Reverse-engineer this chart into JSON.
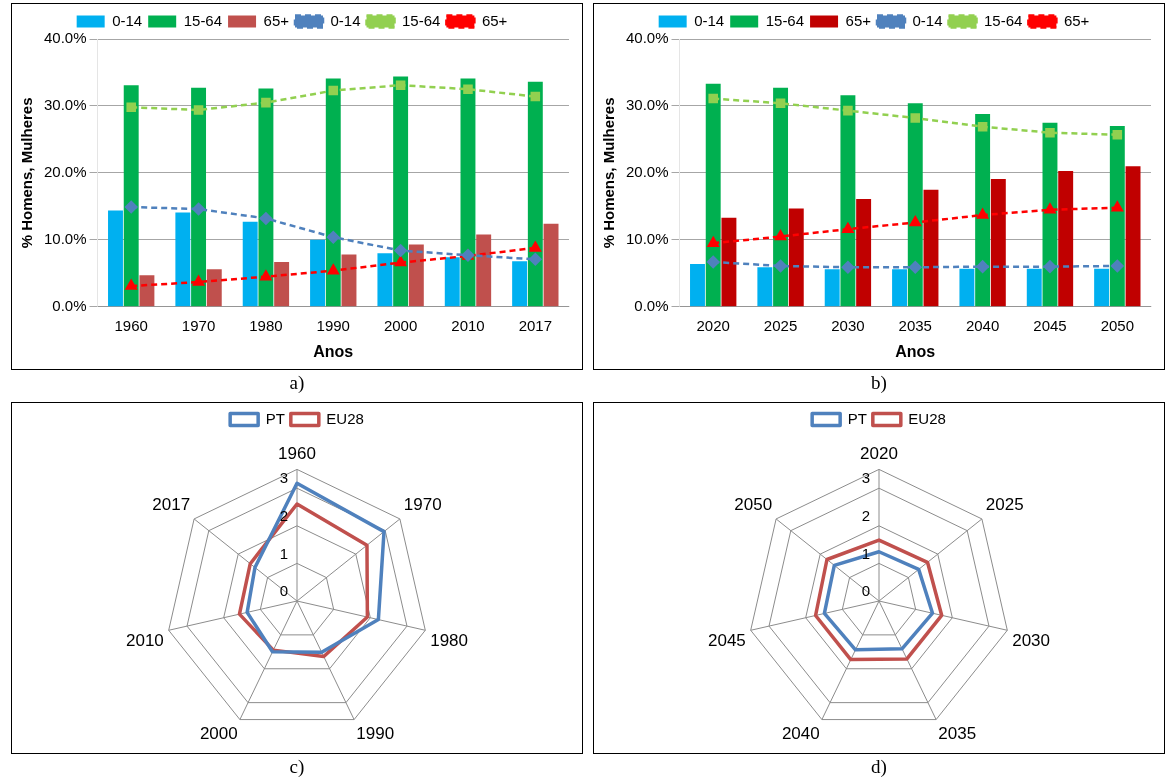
{
  "chart_data": [
    {
      "type": "bar",
      "categories": [
        "1960",
        "1970",
        "1980",
        "1990",
        "2000",
        "2010",
        "2017"
      ],
      "xlabel": "Anos",
      "ylabel": "% Homens, Mulheres",
      "ylim": [
        0,
        40
      ],
      "yticks": [
        {
          "value": 0,
          "label": "0.0%"
        },
        {
          "value": 10,
          "label": "10.0%"
        },
        {
          "value": 20,
          "label": "20.0%"
        },
        {
          "value": 30,
          "label": "30.0%"
        },
        {
          "value": 40,
          "label": "40.0%"
        }
      ],
      "grid": "y",
      "legend": "top",
      "annotations": [
        "a)"
      ],
      "series": [
        {
          "name": "0-14",
          "type": "bar",
          "color": "#00b0f0",
          "values": [
            14.4,
            14.1,
            12.7,
            10.0,
            8.0,
            7.4,
            6.8
          ]
        },
        {
          "name": "15-64",
          "type": "bar",
          "color": "#00b050",
          "values": [
            33.1,
            32.7,
            32.6,
            34.1,
            34.4,
            34.1,
            33.6
          ]
        },
        {
          "name": "65+",
          "type": "bar",
          "color": "#c0504d",
          "values": [
            4.7,
            5.6,
            6.7,
            7.8,
            9.3,
            10.8,
            12.4
          ]
        },
        {
          "name": "0-14",
          "type": "line",
          "color": "#4f81bd",
          "marker": "diamond",
          "line_style": "dashed",
          "values": [
            14.9,
            14.6,
            13.2,
            10.4,
            8.4,
            7.7,
            7.1
          ]
        },
        {
          "name": "15-64",
          "type": "line",
          "color": "#92d050",
          "marker": "square",
          "line_style": "dashed",
          "values": [
            29.8,
            29.4,
            30.5,
            32.3,
            33.1,
            32.5,
            31.4
          ]
        },
        {
          "name": "65+",
          "type": "line",
          "color": "#ff0000",
          "marker": "triangle",
          "line_style": "dashed",
          "values": [
            3.1,
            3.7,
            4.5,
            5.4,
            6.6,
            7.6,
            8.8
          ]
        }
      ]
    },
    {
      "type": "bar",
      "categories": [
        "2020",
        "2025",
        "2030",
        "2035",
        "2040",
        "2045",
        "2050"
      ],
      "xlabel": "Anos",
      "ylabel": "% Homens, Mulheres",
      "ylim": [
        0,
        40
      ],
      "yticks": [
        {
          "value": 0,
          "label": "0.0%"
        },
        {
          "value": 10,
          "label": "10.0%"
        },
        {
          "value": 20,
          "label": "20.0%"
        },
        {
          "value": 30,
          "label": "30.0%"
        },
        {
          "value": 40,
          "label": "40.0%"
        }
      ],
      "grid": "y",
      "legend": "top",
      "annotations": [
        "b)"
      ],
      "series": [
        {
          "name": "0-14",
          "type": "bar",
          "color": "#00b0f0",
          "values": [
            6.4,
            5.9,
            5.6,
            5.6,
            5.7,
            5.7,
            5.7
          ]
        },
        {
          "name": "15-64",
          "type": "bar",
          "color": "#00b050",
          "values": [
            33.3,
            32.7,
            31.6,
            30.4,
            28.8,
            27.5,
            27.0
          ]
        },
        {
          "name": "65+",
          "type": "bar",
          "color": "#c00000",
          "values": [
            13.3,
            14.7,
            16.1,
            17.5,
            19.1,
            20.3,
            21.0
          ]
        },
        {
          "name": "0-14",
          "type": "line",
          "color": "#4f81bd",
          "marker": "diamond",
          "line_style": "dashed",
          "values": [
            6.7,
            6.1,
            5.9,
            5.9,
            6.0,
            6.0,
            6.1
          ]
        },
        {
          "name": "15-64",
          "type": "line",
          "color": "#92d050",
          "marker": "square",
          "line_style": "dashed",
          "values": [
            31.1,
            30.4,
            29.3,
            28.2,
            26.9,
            26.0,
            25.7
          ]
        },
        {
          "name": "65+",
          "type": "line",
          "color": "#ff0000",
          "marker": "triangle",
          "line_style": "dashed",
          "values": [
            9.5,
            10.5,
            11.6,
            12.6,
            13.7,
            14.5,
            14.8
          ]
        }
      ]
    },
    {
      "type": "radar",
      "categories": [
        "1960",
        "1970",
        "1980",
        "1990",
        "2000",
        "2010",
        "2017"
      ],
      "ylim": [
        0,
        3.5
      ],
      "yticks": [
        0,
        1,
        2,
        3
      ],
      "grid": true,
      "legend": "top",
      "annotations": [
        "c)"
      ],
      "series": [
        {
          "name": "PT",
          "color": "#4f81bd",
          "values": [
            3.13,
            2.96,
            2.22,
            1.51,
            1.5,
            1.36,
            1.43
          ]
        },
        {
          "name": "EU28",
          "color": "#c0504d",
          "values": [
            2.58,
            2.38,
            1.92,
            1.64,
            1.45,
            1.57,
            1.59
          ]
        }
      ]
    },
    {
      "type": "radar",
      "categories": [
        "2020",
        "2025",
        "2030",
        "2035",
        "2040",
        "2045",
        "2050"
      ],
      "ylim": [
        0,
        3.5
      ],
      "yticks": [
        0,
        1,
        2,
        3
      ],
      "grid": true,
      "legend": "top",
      "annotations": [
        "d)"
      ],
      "series": [
        {
          "name": "PT",
          "color": "#4f81bd",
          "values": [
            1.31,
            1.35,
            1.46,
            1.41,
            1.44,
            1.49,
            1.52
          ]
        },
        {
          "name": "EU28",
          "color": "#c0504d",
          "values": [
            1.62,
            1.65,
            1.71,
            1.71,
            1.73,
            1.73,
            1.77
          ]
        }
      ]
    }
  ]
}
